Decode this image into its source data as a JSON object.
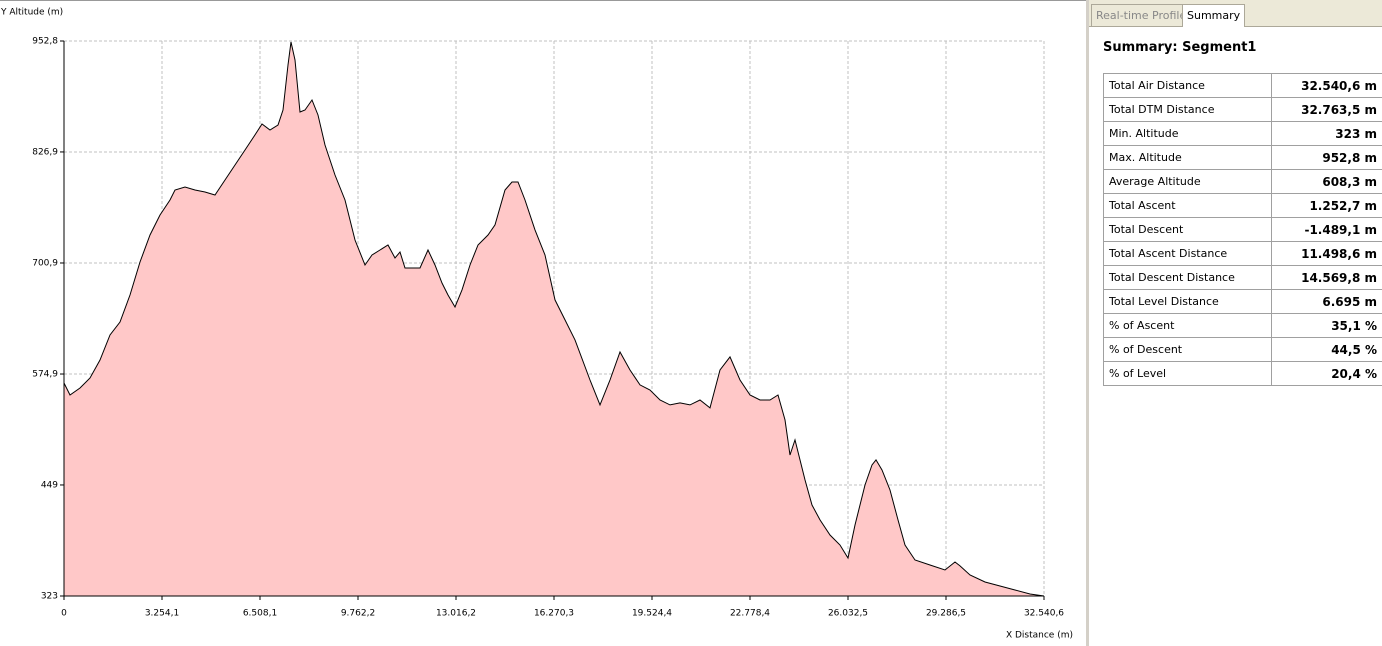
{
  "chart_data": {
    "type": "area",
    "ylabel": "Y Altitude (m)",
    "xlabel": "X Distance (m)",
    "color": "#ffc8c8",
    "line_color": "#000000",
    "grid": true,
    "xlim": [
      0,
      32540.6
    ],
    "ylim": [
      323,
      952.8
    ],
    "xticks": [
      0,
      {
        "value": 3254.1,
        "label": "3.254,1"
      },
      {
        "value": 6508.1,
        "label": "6.508,1"
      },
      {
        "value": 9762.2,
        "label": "9.762,2"
      },
      {
        "value": 13016.2,
        "label": "13.016,2"
      },
      {
        "value": 16270.3,
        "label": "16.270,3"
      },
      {
        "value": 19524.4,
        "label": "19.524,4"
      },
      {
        "value": 22778.4,
        "label": "22.778,4"
      },
      {
        "value": 26032.5,
        "label": "26.032,5"
      },
      {
        "value": 29286.5,
        "label": "29.286,5"
      },
      {
        "value": 32540.6,
        "label": "32.540,6"
      }
    ],
    "yticks": [
      323,
      449,
      {
        "value": 574.9,
        "label": "574,9"
      },
      {
        "value": 700.9,
        "label": "700,9"
      },
      {
        "value": 826.9,
        "label": "826,9"
      },
      {
        "value": 952.8,
        "label": "952,8"
      }
    ],
    "x": [
      0,
      199,
      531,
      863,
      1195,
      1527,
      1859,
      2191,
      2523,
      2855,
      3188,
      3520,
      3686,
      4018,
      4350,
      4682,
      5014,
      5346,
      5678,
      6010,
      6342,
      6575,
      6840,
      7106,
      7272,
      7438,
      7538,
      7670,
      7836,
      8002,
      8235,
      8434,
      8666,
      8998,
      9331,
      9663,
      9995,
      10227,
      10493,
      10759,
      10991,
      11157,
      11323,
      11655,
      11821,
      12087,
      12319,
      12551,
      12751,
      12983,
      13215,
      13481,
      13747,
      14079,
      14311,
      14643,
      14876,
      15075,
      15308,
      15640,
      15972,
      16304,
      16636,
      16968,
      17466,
      17798,
      18130,
      18462,
      18794,
      19126,
      19458,
      19790,
      20123,
      20455,
      20787,
      21119,
      21451,
      21783,
      22115,
      22447,
      22779,
      23111,
      23443,
      23708,
      23941,
      24107,
      24273,
      24439,
      24605,
      24837,
      25103,
      25435,
      25767,
      26032,
      26265,
      26597,
      26829,
      26962,
      27161,
      27427,
      27693,
      27926,
      28258,
      28756,
      29254,
      29586,
      29752,
      30084,
      30582,
      31080,
      31578,
      32076,
      32540.6
    ],
    "series": [
      {
        "values": [
          564.7,
          551.1,
          559.0,
          570.4,
          590.8,
          619.2,
          633.9,
          664.6,
          702.0,
          732.7,
          755.4,
          772.4,
          783.7,
          787.1,
          783.7,
          781.5,
          778.1,
          795.1,
          812.1,
          829.1,
          846.2,
          858.6,
          851.8,
          857.5,
          874.5,
          925.6,
          951.7,
          931.2,
          872.2,
          874.5,
          885.9,
          868.8,
          834.8,
          800.7,
          772.4,
          727.0,
          698.6,
          710.0,
          715.6,
          721.3,
          706.6,
          713.4,
          695.2,
          695.2,
          695.2,
          715.6,
          698.6,
          678.2,
          664.6,
          651.0,
          670.3,
          698.6,
          721.3,
          732.7,
          744.1,
          783.7,
          792.8,
          792.8,
          772.4,
          738.4,
          710.0,
          659.0,
          636.3,
          613.6,
          568.1,
          539.8,
          568.1,
          599.9,
          579.5,
          562.5,
          556.8,
          545.4,
          539.8,
          542.1,
          539.8,
          545.4,
          536.4,
          579.5,
          594.3,
          568.1,
          551.1,
          545.4,
          545.4,
          551.1,
          522.8,
          483.0,
          500.1,
          477.4,
          454.7,
          426.3,
          409.3,
          392.2,
          380.9,
          366.1,
          403.6,
          449.0,
          471.7,
          477.4,
          466.0,
          443.3,
          409.3,
          380.9,
          363.9,
          358.2,
          352.5,
          361.6,
          357.1,
          346.8,
          338.9,
          334.4,
          329.8,
          325.3,
          323.0
        ]
      }
    ]
  },
  "panel": {
    "tabs": [
      "Real-time Profile",
      "Summary"
    ],
    "title": "Summary: Segment1",
    "rows": [
      [
        "Total Air Distance",
        "32.540,6 m"
      ],
      [
        "Total DTM Distance",
        "32.763,5 m"
      ],
      [
        "Min. Altitude",
        "323 m"
      ],
      [
        "Max. Altitude",
        "952,8 m"
      ],
      [
        "Average Altitude",
        "608,3 m"
      ],
      [
        "Total Ascent",
        "1.252,7 m"
      ],
      [
        "Total Descent",
        "-1.489,1 m"
      ],
      [
        "Total Ascent Distance",
        "11.498,6 m"
      ],
      [
        "Total Descent Distance",
        "14.569,8 m"
      ],
      [
        "Total Level Distance",
        "6.695 m"
      ],
      [
        "% of Ascent",
        "35,1 %"
      ],
      [
        "% of Descent",
        "44,5 %"
      ],
      [
        "% of Level",
        "20,4 %"
      ]
    ]
  }
}
